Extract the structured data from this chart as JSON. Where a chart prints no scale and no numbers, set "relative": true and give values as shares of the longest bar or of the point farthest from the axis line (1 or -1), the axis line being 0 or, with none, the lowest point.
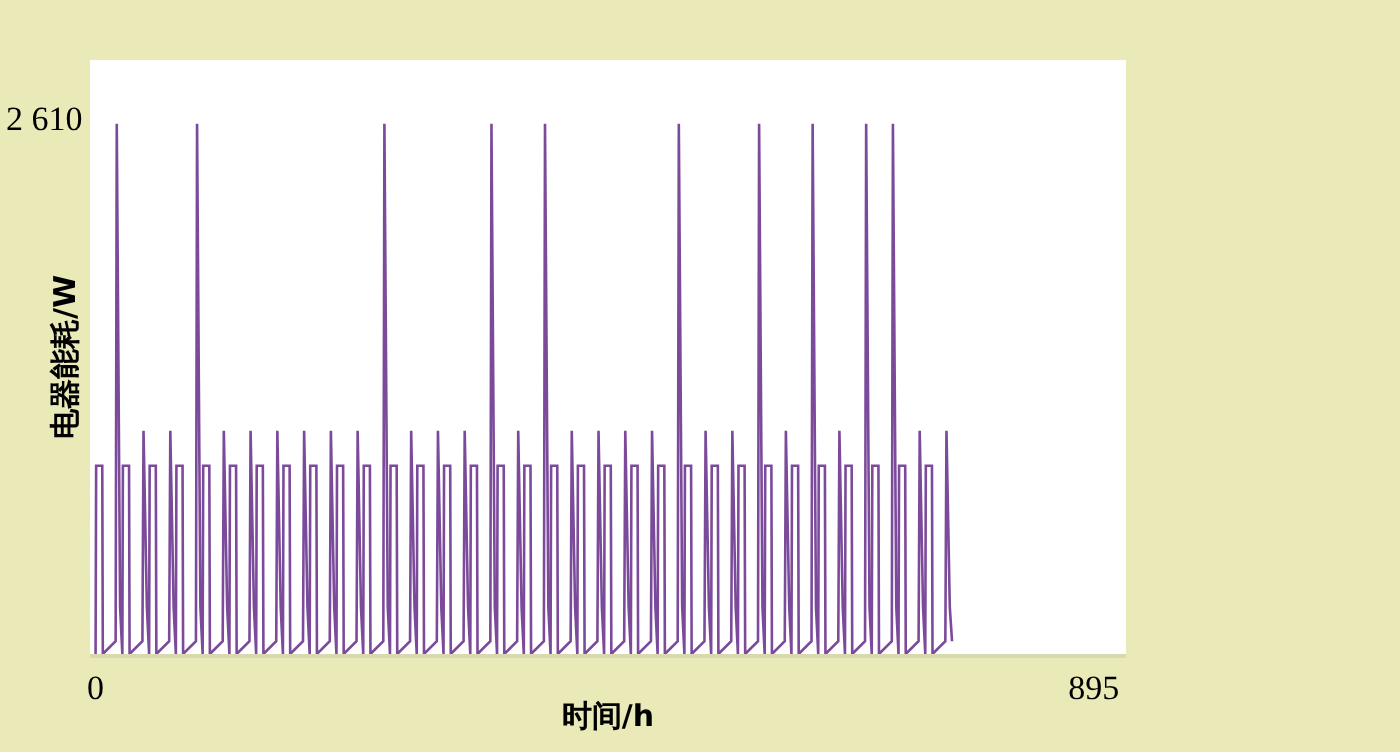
{
  "chart_data": {
    "type": "line",
    "xlabel": "时间/h",
    "ylabel": "电器能耗/W",
    "relative": true,
    "annotations": [
      "2 610"
    ],
    "xlim": [
      -5,
      924
    ],
    "xticks": [
      0,
      895
    ],
    "marker": "none",
    "line_style": "solid",
    "series": [
      {
        "color": "#7b4a9a",
        "x": [
          0,
          0.5,
          6,
          6.5,
          18,
          19,
          22,
          24,
          24.5,
          30,
          30.5,
          42,
          43,
          46,
          48,
          48.5,
          54,
          54.5,
          66,
          67,
          70,
          72,
          72.5,
          78,
          78.5,
          90,
          91,
          94,
          96,
          96.5,
          102,
          102.5,
          114,
          115,
          118,
          120,
          120.5,
          126,
          126.5,
          138,
          139,
          142,
          144,
          144.5,
          150,
          150.5,
          162,
          163,
          166,
          168,
          168.5,
          174,
          174.5,
          186,
          187,
          190,
          192,
          192.5,
          198,
          198.5,
          210,
          211,
          214,
          216,
          216.5,
          222,
          222.5,
          234,
          235,
          238,
          240,
          240.5,
          246,
          246.5,
          258,
          259,
          262,
          264,
          264.5,
          270,
          270.5,
          282,
          283,
          286,
          288,
          288.5,
          294,
          294.5,
          306,
          307,
          310,
          312,
          312.5,
          318,
          318.5,
          330,
          331,
          334,
          336,
          336.5,
          342,
          342.5,
          354,
          355,
          358,
          360,
          360.5,
          366,
          366.5,
          378,
          379,
          382,
          384,
          384.5,
          390,
          390.5,
          402,
          403,
          406,
          408,
          408.5,
          414,
          414.5,
          426,
          427,
          430,
          432,
          432.5,
          438,
          438.5,
          450,
          451,
          454,
          456,
          456.5,
          462,
          462.5,
          474,
          475,
          478,
          480,
          480.5,
          486,
          486.5,
          498,
          499,
          502,
          504,
          504.5,
          510,
          510.5,
          522,
          523,
          526,
          528,
          528.5,
          534,
          534.5,
          546,
          547,
          550,
          552,
          552.5,
          558,
          558.5,
          570,
          571,
          574,
          576,
          576.5,
          582,
          582.5,
          594,
          595,
          598,
          600,
          600.5,
          606,
          606.5,
          618,
          619,
          622,
          624,
          624.5,
          630,
          630.5,
          642,
          643,
          646,
          648,
          648.5,
          654,
          654.5,
          666,
          667,
          670,
          672,
          672.5,
          678,
          678.5,
          690,
          691,
          694,
          696,
          696.5,
          702,
          702.5,
          714,
          715,
          718,
          720,
          720.5,
          726,
          726.5,
          738,
          739,
          742,
          744,
          744.5,
          750,
          750.5,
          762,
          763,
          766,
          768
        ],
        "values": [
          0,
          0.355,
          0.355,
          0,
          0.024,
          1,
          0.088,
          0,
          0.355,
          0.355,
          0,
          0.024,
          0.421,
          0.088,
          0,
          0.355,
          0.355,
          0,
          0.024,
          0.421,
          0.088,
          0,
          0.355,
          0.355,
          0,
          0.024,
          1,
          0.088,
          0,
          0.355,
          0.355,
          0,
          0.024,
          0.421,
          0.088,
          0,
          0.355,
          0.355,
          0,
          0.024,
          0.421,
          0.088,
          0,
          0.355,
          0.355,
          0,
          0.024,
          0.421,
          0.088,
          0,
          0.355,
          0.355,
          0,
          0.024,
          0.421,
          0.088,
          0,
          0.355,
          0.355,
          0,
          0.024,
          0.421,
          0.088,
          0,
          0.355,
          0.355,
          0,
          0.024,
          0.421,
          0.088,
          0,
          0.355,
          0.355,
          0,
          0.024,
          1,
          0.088,
          0,
          0.355,
          0.355,
          0,
          0.024,
          0.421,
          0.088,
          0,
          0.355,
          0.355,
          0,
          0.024,
          0.421,
          0.088,
          0,
          0.355,
          0.355,
          0,
          0.024,
          0.421,
          0.088,
          0,
          0.355,
          0.355,
          0,
          0.024,
          1,
          0.088,
          0,
          0.355,
          0.355,
          0,
          0.024,
          0.421,
          0.088,
          0,
          0.355,
          0.355,
          0,
          0.024,
          1,
          0.088,
          0,
          0.355,
          0.355,
          0,
          0.024,
          0.421,
          0.088,
          0,
          0.355,
          0.355,
          0,
          0.024,
          0.421,
          0.088,
          0,
          0.355,
          0.355,
          0,
          0.024,
          0.421,
          0.088,
          0,
          0.355,
          0.355,
          0,
          0.024,
          0.421,
          0.088,
          0,
          0.355,
          0.355,
          0,
          0.024,
          1,
          0.088,
          0,
          0.355,
          0.355,
          0,
          0.024,
          0.421,
          0.088,
          0,
          0.355,
          0.355,
          0,
          0.024,
          0.421,
          0.088,
          0,
          0.355,
          0.355,
          0,
          0.024,
          1,
          0.088,
          0,
          0.355,
          0.355,
          0,
          0.024,
          0.421,
          0.088,
          0,
          0.355,
          0.355,
          0,
          0.024,
          1,
          0.088,
          0,
          0.355,
          0.355,
          0,
          0.024,
          0.421,
          0.088,
          0,
          0.355,
          0.355,
          0,
          0.024,
          1,
          0.088,
          0,
          0.355,
          0.355,
          0,
          0.024,
          1,
          0.088,
          0,
          0.355,
          0.355,
          0,
          0.024,
          0.421,
          0.088,
          0,
          0.355,
          0.355,
          0,
          0.024,
          0.421,
          0.088,
          0.024
        ]
      }
    ]
  }
}
